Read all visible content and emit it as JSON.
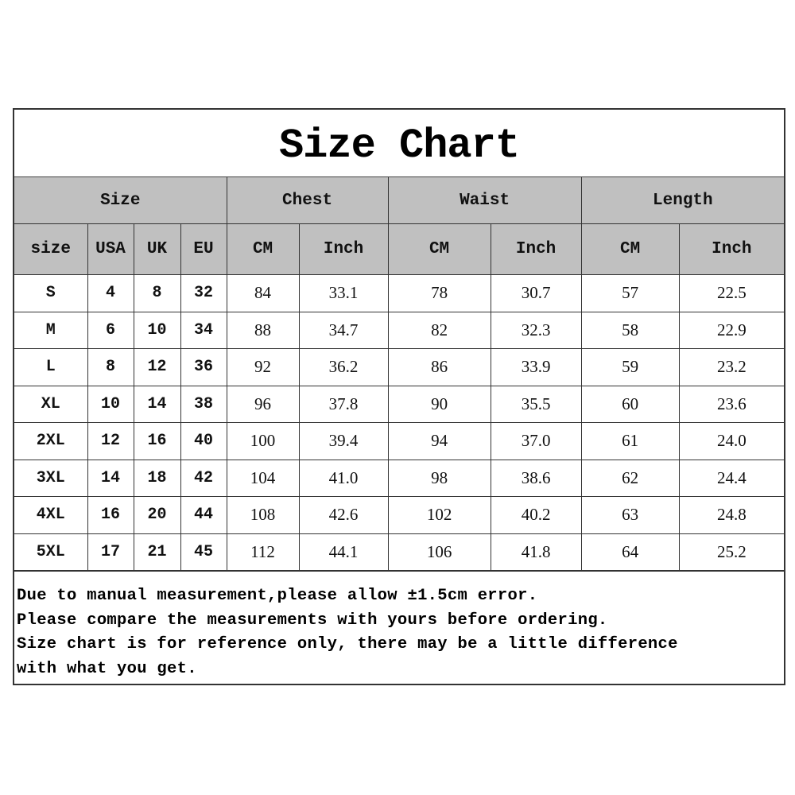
{
  "title": "Size Chart",
  "group_headers": [
    "Size",
    "Chest",
    "Waist",
    "Length"
  ],
  "sub_headers": [
    "size",
    "USA",
    "UK",
    "EU",
    "CM",
    "Inch",
    "CM",
    "Inch",
    "CM",
    "Inch"
  ],
  "rows": [
    [
      "S",
      "4",
      "8",
      "32",
      "84",
      "33.1",
      "78",
      "30.7",
      "57",
      "22.5"
    ],
    [
      "M",
      "6",
      "10",
      "34",
      "88",
      "34.7",
      "82",
      "32.3",
      "58",
      "22.9"
    ],
    [
      "L",
      "8",
      "12",
      "36",
      "92",
      "36.2",
      "86",
      "33.9",
      "59",
      "23.2"
    ],
    [
      "XL",
      "10",
      "14",
      "38",
      "96",
      "37.8",
      "90",
      "35.5",
      "60",
      "23.6"
    ],
    [
      "2XL",
      "12",
      "16",
      "40",
      "100",
      "39.4",
      "94",
      "37.0",
      "61",
      "24.0"
    ],
    [
      "3XL",
      "14",
      "18",
      "42",
      "104",
      "41.0",
      "98",
      "38.6",
      "62",
      "24.4"
    ],
    [
      "4XL",
      "16",
      "20",
      "44",
      "108",
      "42.6",
      "102",
      "40.2",
      "63",
      "24.8"
    ],
    [
      "5XL",
      "17",
      "21",
      "45",
      "112",
      "44.1",
      "106",
      "41.8",
      "64",
      "25.2"
    ]
  ],
  "notes": [
    "Due to manual measurement,please allow ±1.5cm error.",
    "Please compare the measurements with yours before ordering.",
    "Size chart is for reference only, there may be a little difference",
    "with what you get."
  ]
}
